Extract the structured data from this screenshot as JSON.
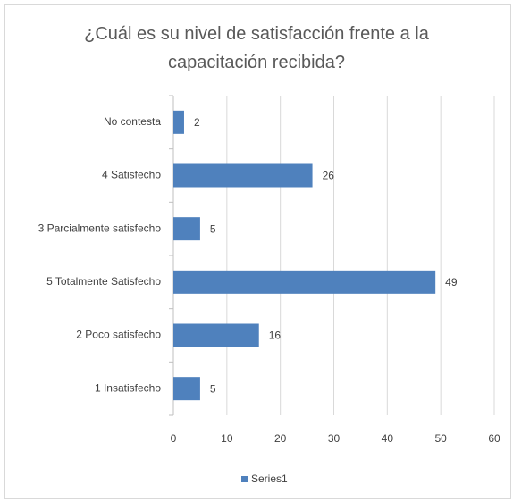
{
  "chart_data": {
    "type": "bar",
    "orientation": "horizontal",
    "title": "¿Cuál es su nivel de satisfacción frente a la capacitación recibida?",
    "categories": [
      "No contesta",
      "4 Satisfecho",
      "3 Parcialmente satisfecho",
      "5 Totalmente Satisfecho",
      "2 Poco satisfecho",
      "1 Insatisfecho"
    ],
    "series": [
      {
        "name": "Series1",
        "color": "#4f81bd",
        "values": [
          2,
          26,
          5,
          49,
          16,
          5
        ]
      }
    ],
    "xlim": [
      0,
      60
    ],
    "xticks": [
      0,
      10,
      20,
      30,
      40,
      50,
      60
    ],
    "grid": true,
    "legend": "bottom"
  }
}
